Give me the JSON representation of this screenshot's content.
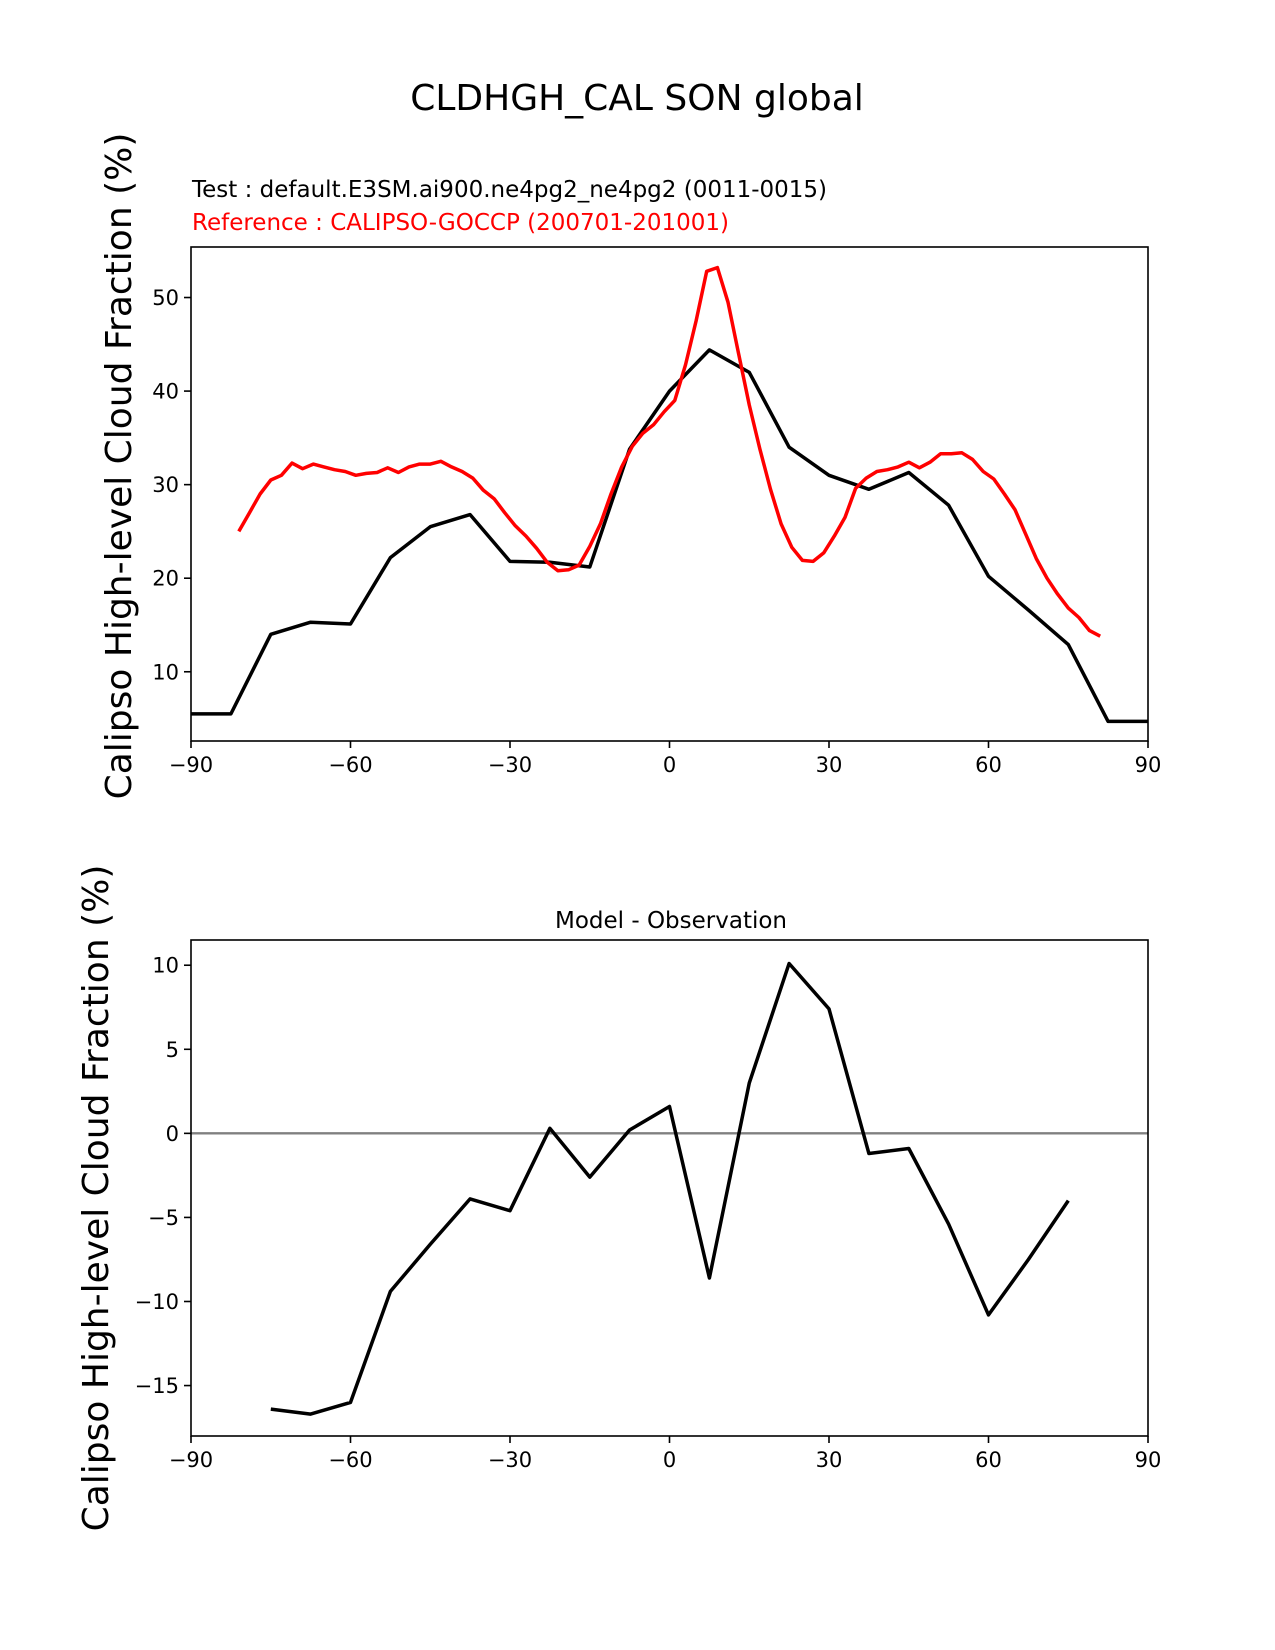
{
  "figure": {
    "title": "CLDHGH_CAL SON global"
  },
  "colors": {
    "test": "#000000",
    "reference": "#ff0000",
    "zero_line": "#808080"
  },
  "chart_data": [
    {
      "type": "line",
      "test_label": "Test : default.E3SM.ai900.ne4pg2_ne4pg2 (0011-0015)",
      "reference_label": "Reference : CALIPSO-GOCCP (200701-201001)",
      "ylabel": "Calipso High-level Cloud Fraction (%)",
      "xlim": [
        -90,
        90
      ],
      "ylim": [
        2.6,
        55.4
      ],
      "xticks": [
        -90,
        -60,
        -30,
        0,
        30,
        60,
        90
      ],
      "xtick_labels": [
        "−90",
        "−60",
        "−30",
        "0",
        "30",
        "60",
        "90"
      ],
      "yticks": [
        10,
        20,
        30,
        40,
        50
      ],
      "ytick_labels": [
        "10",
        "20",
        "30",
        "40",
        "50"
      ],
      "series": [
        {
          "role": "test",
          "color": "#000000",
          "x": [
            -90,
            -82.5,
            -75,
            -67.5,
            -60,
            -52.5,
            -45,
            -37.5,
            -30,
            -22.5,
            -15,
            -7.5,
            0,
            7.5,
            15,
            22.5,
            30,
            37.5,
            45,
            52.5,
            60,
            67.5,
            75,
            82.5,
            90
          ],
          "y": [
            5.5,
            5.5,
            14.0,
            15.3,
            15.1,
            22.2,
            25.5,
            26.8,
            21.8,
            21.7,
            21.2,
            33.8,
            40.0,
            44.4,
            42.0,
            34.0,
            31.0,
            29.5,
            31.3,
            27.8,
            20.2,
            16.6,
            12.9,
            4.7,
            4.7
          ]
        },
        {
          "role": "reference",
          "color": "#ff0000",
          "x": [
            -81,
            -79,
            -77,
            -75,
            -73,
            -71,
            -69,
            -67,
            -65,
            -63,
            -61,
            -59,
            -57,
            -55,
            -53,
            -51,
            -49,
            -47,
            -45,
            -43,
            -41,
            -39,
            -37,
            -35,
            -33,
            -31,
            -29,
            -27,
            -25,
            -23,
            -21,
            -19,
            -17,
            -15,
            -13,
            -11,
            -9,
            -7,
            -5,
            -3,
            -1,
            1,
            3,
            5,
            7,
            9,
            11,
            13,
            15,
            17,
            19,
            21,
            23,
            25,
            27,
            29,
            31,
            33,
            35,
            37,
            39,
            41,
            43,
            45,
            47,
            49,
            51,
            53,
            55,
            57,
            59,
            61,
            63,
            65,
            67,
            69,
            71,
            73,
            75,
            77,
            79,
            81
          ],
          "y": [
            25.0,
            27.0,
            29.0,
            30.5,
            31.0,
            32.3,
            31.7,
            32.2,
            31.9,
            31.6,
            31.4,
            31.0,
            31.2,
            31.3,
            31.8,
            31.3,
            31.9,
            32.2,
            32.2,
            32.5,
            31.9,
            31.4,
            30.7,
            29.4,
            28.5,
            27.0,
            25.6,
            24.5,
            23.2,
            21.7,
            20.8,
            20.9,
            21.4,
            23.4,
            25.8,
            29.0,
            31.9,
            34.1,
            35.5,
            36.4,
            37.8,
            39.0,
            42.8,
            47.5,
            52.8,
            53.2,
            49.5,
            44.0,
            38.5,
            33.8,
            29.5,
            25.8,
            23.3,
            21.9,
            21.8,
            22.7,
            24.5,
            26.5,
            29.6,
            30.7,
            31.4,
            31.6,
            31.9,
            32.4,
            31.8,
            32.4,
            33.3,
            33.3,
            33.4,
            32.7,
            31.4,
            30.6,
            29.0,
            27.3,
            24.7,
            22.1,
            20.0,
            18.3,
            16.8,
            15.8,
            14.4,
            13.8
          ]
        }
      ]
    },
    {
      "type": "line",
      "title": "Model - Observation",
      "ylabel": "Calipso High-level Cloud Fraction (%)",
      "xlim": [
        -90,
        90
      ],
      "ylim": [
        -18,
        11.5
      ],
      "xticks": [
        -90,
        -60,
        -30,
        0,
        30,
        60,
        90
      ],
      "xtick_labels": [
        "−90",
        "−60",
        "−30",
        "0",
        "30",
        "60",
        "90"
      ],
      "yticks": [
        -15,
        -10,
        -5,
        0,
        5,
        10
      ],
      "ytick_labels": [
        "−15",
        "−10",
        "−5",
        "0",
        "5",
        "10"
      ],
      "zero_line": 0,
      "series": [
        {
          "role": "difference",
          "color": "#000000",
          "x": [
            -75,
            -67.5,
            -60,
            -52.5,
            -45,
            -37.5,
            -30,
            -22.5,
            -15,
            -7.5,
            0,
            7.5,
            15,
            22.5,
            30,
            37.5,
            45,
            52.5,
            60,
            67.5,
            75
          ],
          "y": [
            -16.4,
            -16.7,
            -16.0,
            -9.4,
            -6.6,
            -3.9,
            -4.6,
            0.3,
            -2.6,
            0.2,
            1.6,
            -8.6,
            3.0,
            10.1,
            7.4,
            -1.2,
            -0.9,
            -5.4,
            -10.8,
            -7.5,
            -4.0
          ]
        }
      ]
    }
  ]
}
